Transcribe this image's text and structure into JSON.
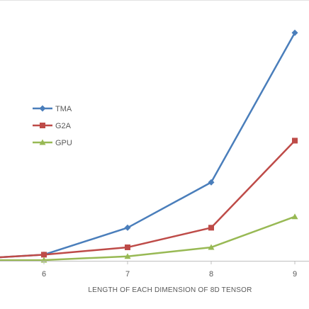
{
  "chart_data": {
    "type": "line",
    "xlabel": "LENGTH OF EACH DIMENSION OF 8D TENSOR",
    "ylabel": "",
    "x": [
      5,
      6,
      7,
      8,
      9
    ],
    "x_ticks": [
      "6",
      "7",
      "8",
      "9"
    ],
    "xlim": [
      5.5,
      9.15
    ],
    "ylim": [
      0,
      100
    ],
    "grid": false,
    "legend_position": "left",
    "series": [
      {
        "name": "TMA",
        "color": "#4a7ebb",
        "marker": "diamond",
        "values": [
          0.5,
          2.5,
          13.5,
          32,
          93
        ]
      },
      {
        "name": "G2A",
        "color": "#be4b48",
        "marker": "square",
        "values": [
          0.5,
          2.5,
          5.5,
          13.5,
          49
        ]
      },
      {
        "name": "GPU",
        "color": "#98b954",
        "marker": "triangle",
        "values": [
          0.2,
          0.3,
          1.8,
          5.5,
          18
        ]
      }
    ]
  }
}
